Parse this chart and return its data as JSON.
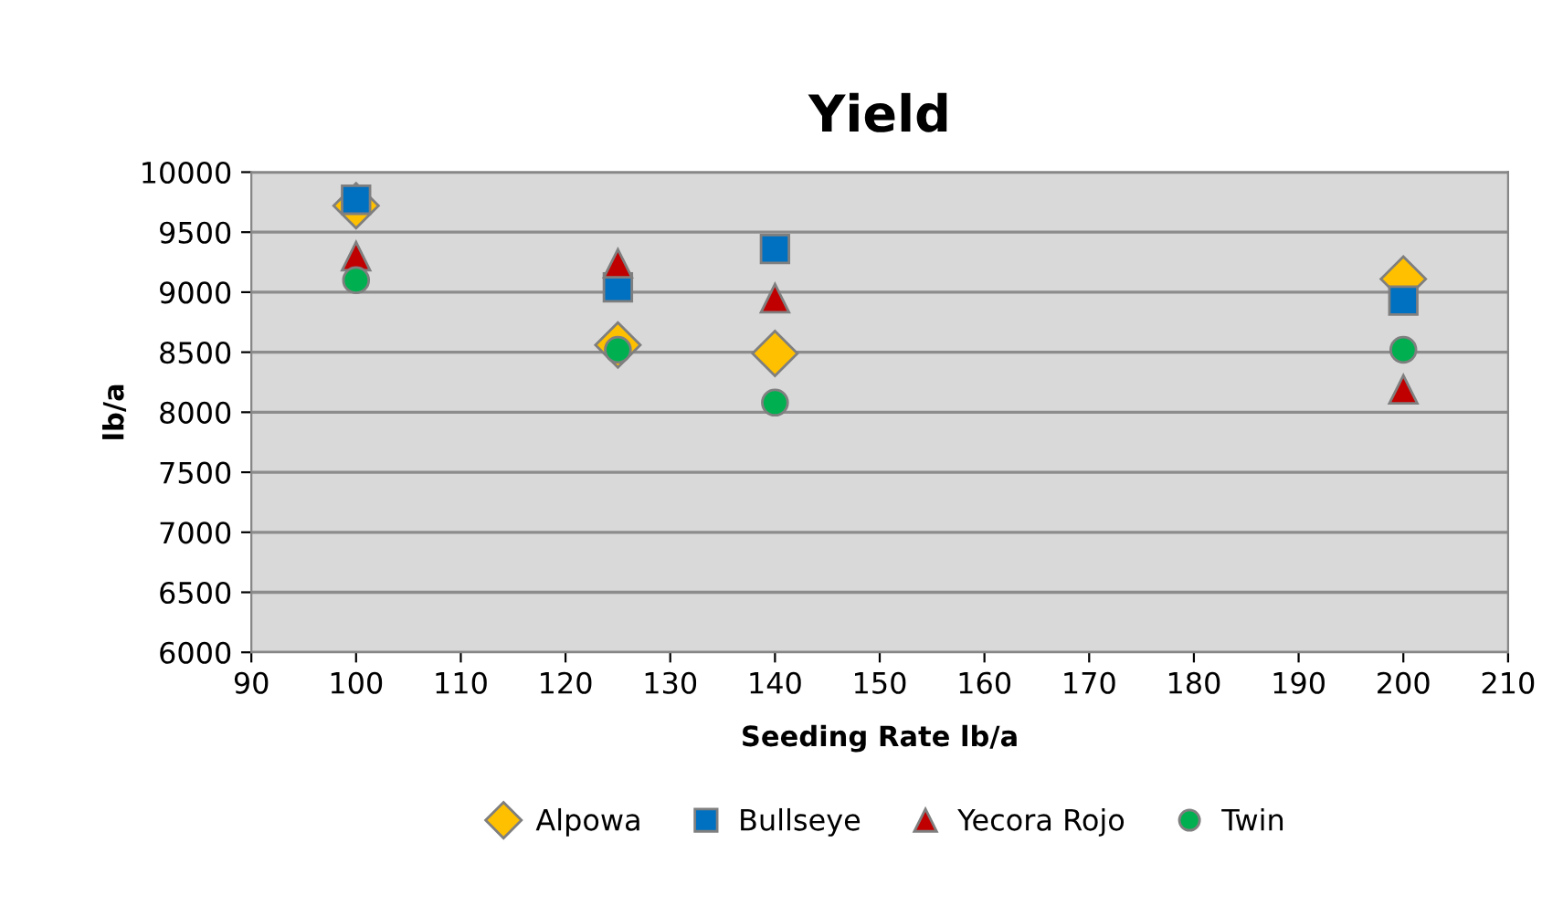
{
  "chart_data": {
    "type": "scatter",
    "title": "Yield",
    "xlabel": "Seeding Rate lb/a",
    "ylabel": "lb/a",
    "xlim": [
      90,
      210
    ],
    "xticks": [
      90,
      100,
      110,
      120,
      130,
      140,
      150,
      160,
      170,
      180,
      190,
      200,
      210
    ],
    "ylim": [
      6000,
      10000
    ],
    "yticks": [
      6000,
      6500,
      7000,
      7500,
      8000,
      8500,
      9000,
      9500,
      10000
    ],
    "grid": "y",
    "legend": "bottom",
    "series": [
      {
        "name": "Alpowa",
        "color": "#ffc000",
        "marker": "diamond",
        "x": [
          100,
          125,
          140,
          200
        ],
        "values": [
          9720,
          8560,
          8490,
          9110
        ]
      },
      {
        "name": "Bullseye",
        "color": "#0070c0",
        "marker": "square",
        "x": [
          100,
          125,
          140,
          200
        ],
        "values": [
          9770,
          9040,
          9360,
          8930
        ]
      },
      {
        "name": "Yecora Rojo",
        "color": "#c00000",
        "marker": "triangle",
        "x": [
          100,
          125,
          140,
          200
        ],
        "values": [
          9300,
          9240,
          8950,
          8190
        ]
      },
      {
        "name": "Twin",
        "color": "#00b050",
        "marker": "circle",
        "x": [
          100,
          125,
          140,
          200
        ],
        "values": [
          9100,
          8520,
          8080,
          8520
        ]
      }
    ]
  }
}
